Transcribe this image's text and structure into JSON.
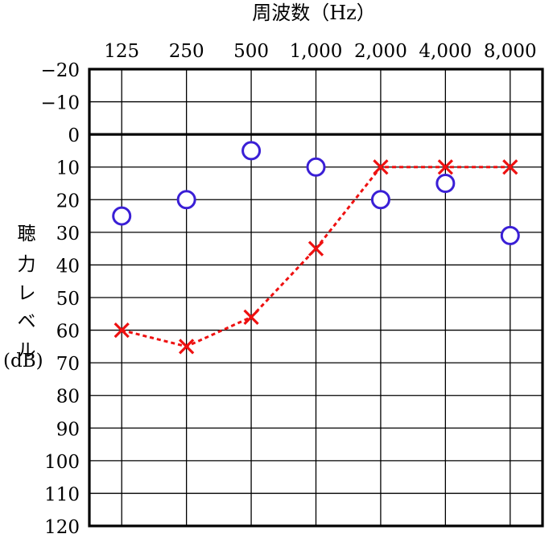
{
  "chart_data": {
    "type": "scatter",
    "title": "",
    "xlabel": "周波数（Hz）",
    "ylabel_chars": [
      "聴",
      "力",
      "レ",
      "ベ",
      "ル"
    ],
    "ylabel_unit": "(dB)",
    "x_tick_labels": [
      "125",
      "250",
      "500",
      "1,000",
      "2,000",
      "4,000",
      "8,000"
    ],
    "y_tick_labels": [
      "−20",
      "−10",
      "0",
      "10",
      "20",
      "30",
      "40",
      "50",
      "60",
      "70",
      "80",
      "90",
      "100",
      "110",
      "120"
    ],
    "y_ticks": [
      -20,
      -10,
      0,
      10,
      20,
      30,
      40,
      50,
      60,
      70,
      80,
      90,
      100,
      110,
      120
    ],
    "ylim": [
      -20,
      120
    ],
    "y_inverted": true,
    "grid": true,
    "series": [
      {
        "marker": "circle",
        "color": "#3a1fd6",
        "connected": false,
        "values": [
          25,
          20,
          5,
          10,
          20,
          15,
          31
        ]
      },
      {
        "marker": "cross",
        "color": "#ee1111",
        "connected": true,
        "line_style": "dotted",
        "values": [
          60,
          65,
          56,
          35,
          10,
          10,
          10
        ]
      }
    ]
  }
}
